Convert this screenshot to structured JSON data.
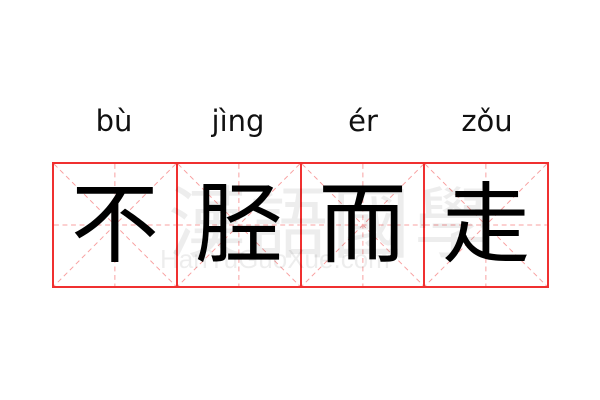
{
  "words": [
    {
      "pinyin": "bù",
      "char": "不"
    },
    {
      "pinyin": "jìng",
      "char": "胫"
    },
    {
      "pinyin": "ér",
      "char": "而"
    },
    {
      "pinyin": "zǒu",
      "char": "走"
    }
  ],
  "watermark": {
    "hanzi": "漢語國學",
    "latin": "HanYuGuoXue.com"
  },
  "colors": {
    "grid": "#f03030",
    "guide": "#f8a0a0",
    "text": "#000000"
  }
}
